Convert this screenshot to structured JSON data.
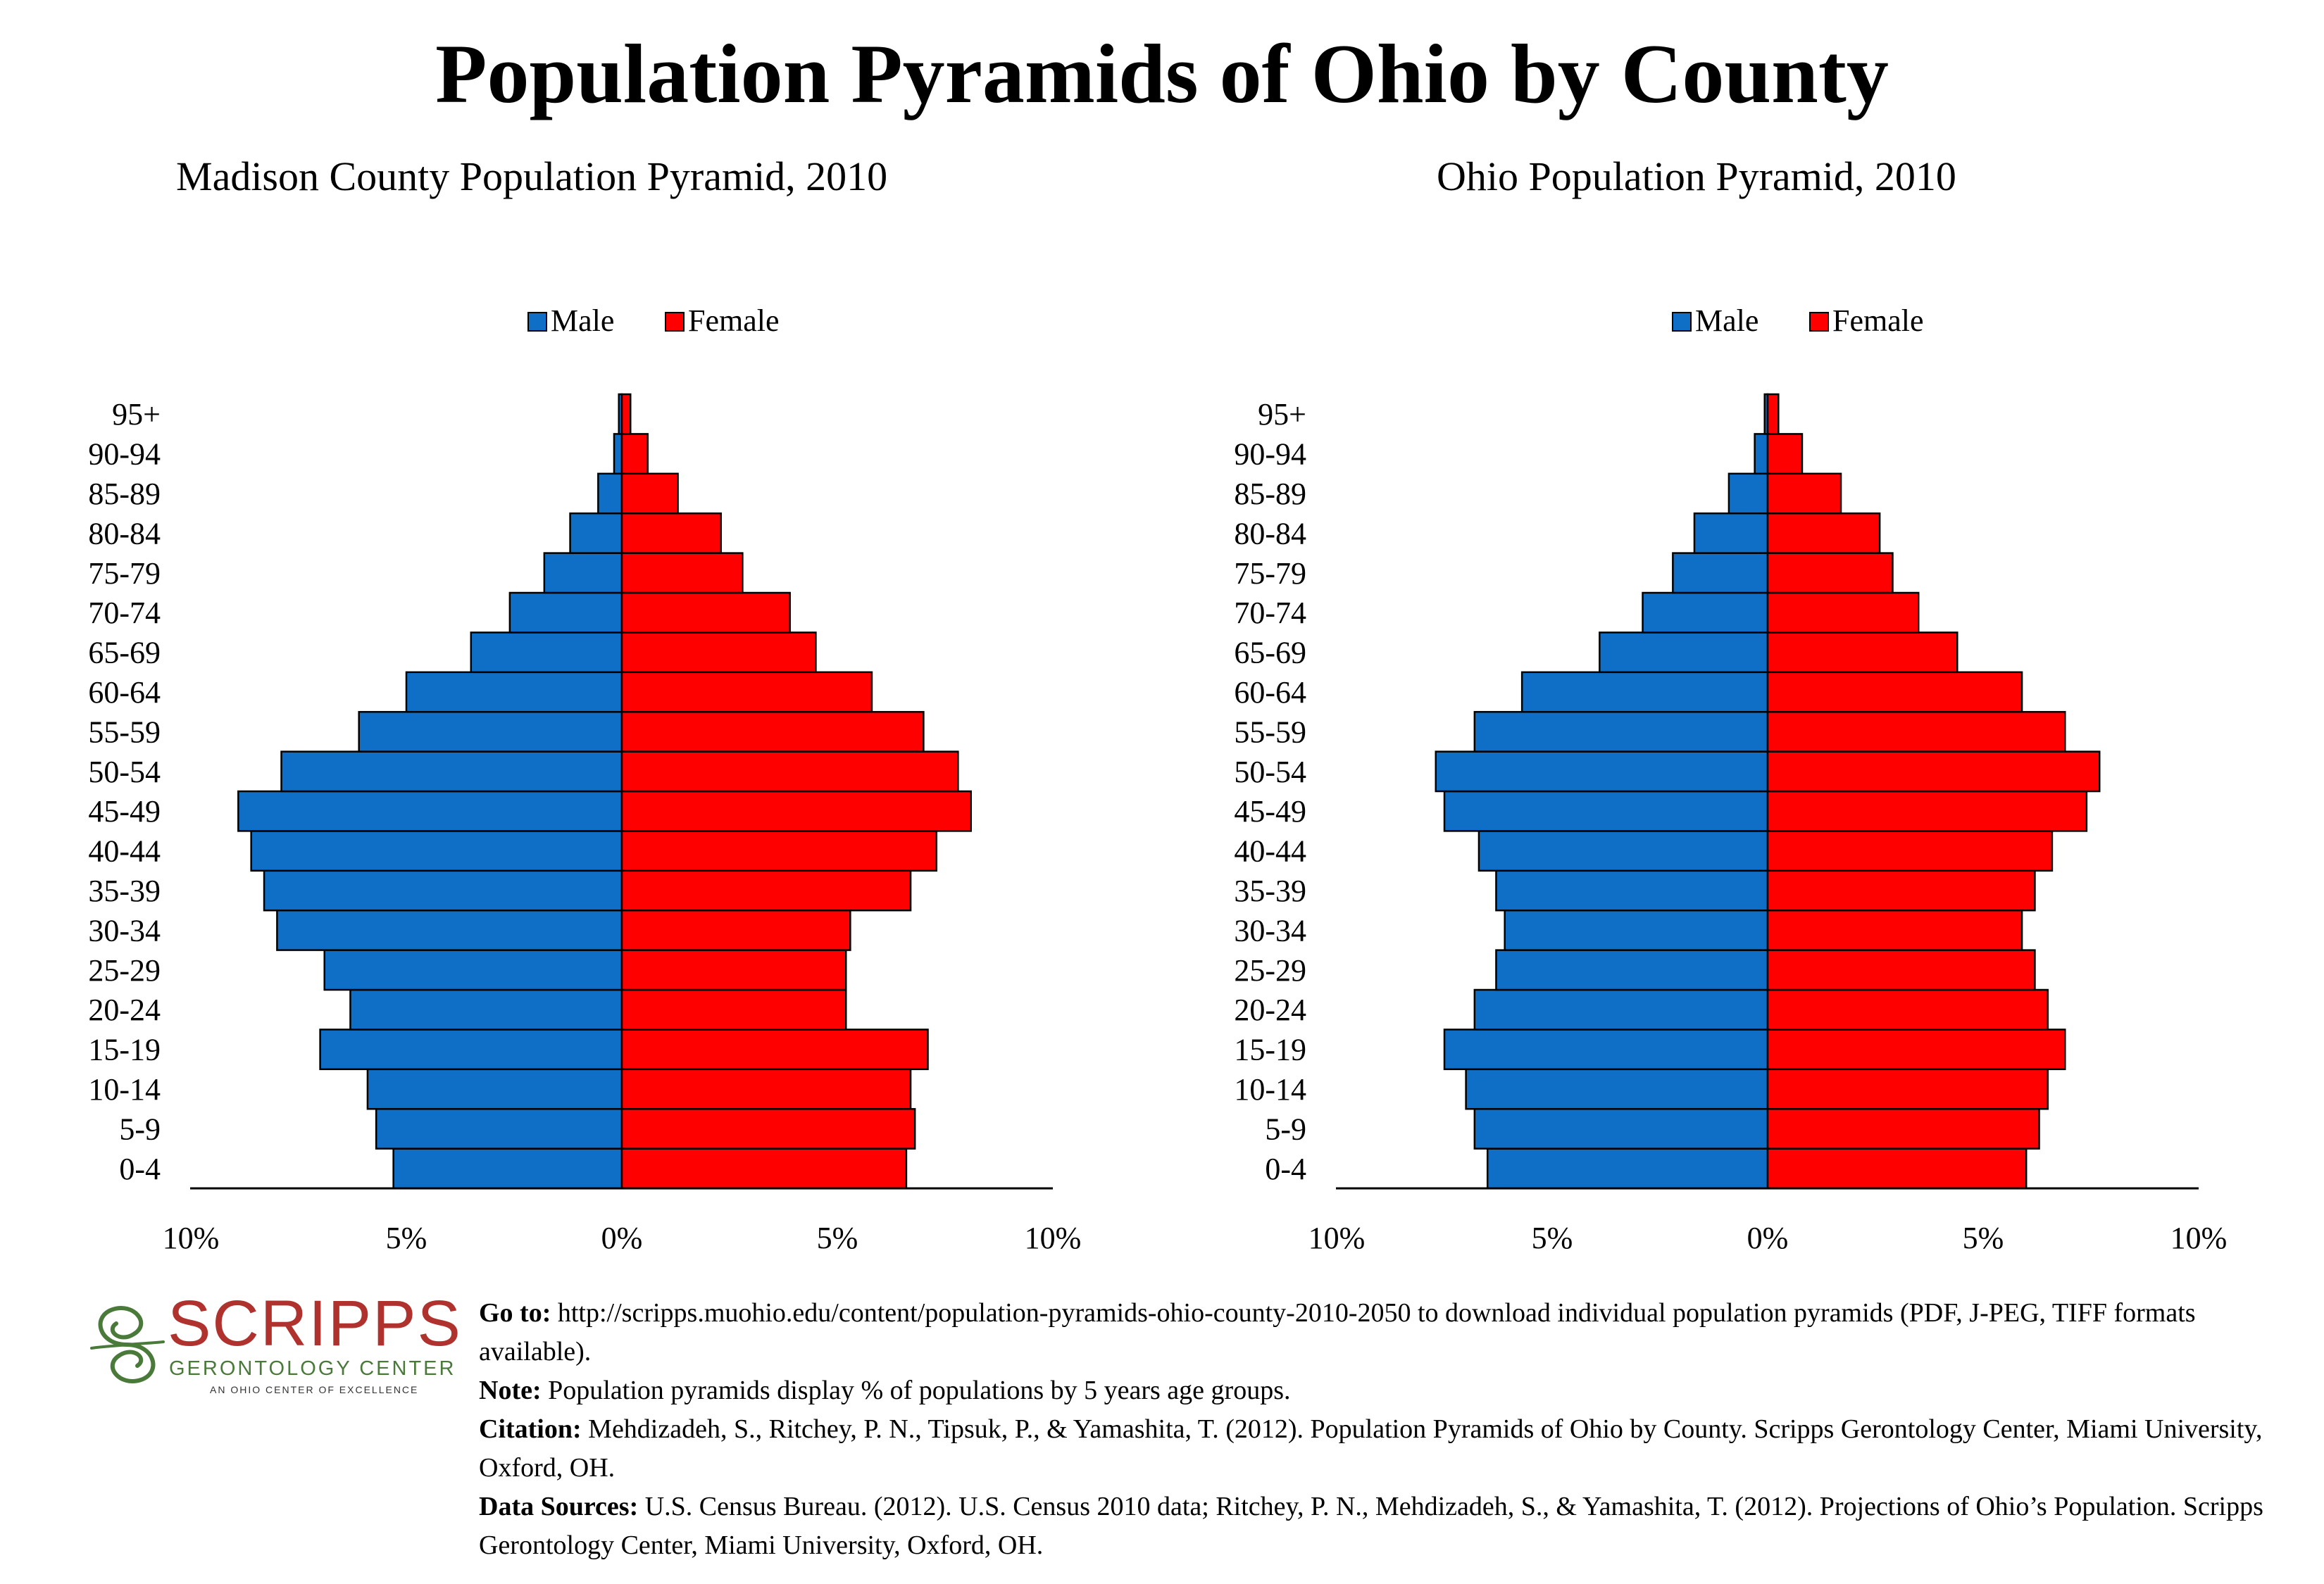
{
  "page_title": "Population Pyramids of Ohio by County",
  "colors": {
    "male": "#0f6fc6",
    "female": "#ff0000",
    "axis": "#000000",
    "logo_red": "#b0322e",
    "logo_green": "#4a7a3a"
  },
  "chart_data": [
    {
      "type": "bar",
      "orientation": "horizontal-pyramid",
      "title": "Madison County Population Pyramid, 2010",
      "legend": {
        "position": "top",
        "entries": [
          "Male",
          "Female"
        ]
      },
      "categories": [
        "0-4",
        "5-9",
        "10-14",
        "15-19",
        "20-24",
        "25-29",
        "30-34",
        "35-39",
        "40-44",
        "45-49",
        "50-54",
        "55-59",
        "60-64",
        "65-69",
        "70-74",
        "75-79",
        "80-84",
        "85-89",
        "90-94",
        "95+"
      ],
      "series": [
        {
          "name": "Male",
          "values": [
            5.3,
            5.7,
            5.9,
            7.0,
            6.3,
            6.9,
            8.0,
            8.3,
            8.6,
            8.9,
            7.9,
            6.1,
            5.0,
            3.5,
            2.6,
            1.8,
            1.2,
            0.55,
            0.18,
            0.07
          ]
        },
        {
          "name": "Female",
          "values": [
            6.6,
            6.8,
            6.7,
            7.1,
            5.2,
            5.2,
            5.3,
            6.7,
            7.3,
            8.1,
            7.8,
            7.0,
            5.8,
            4.5,
            3.9,
            2.8,
            2.3,
            1.3,
            0.6,
            0.2
          ]
        }
      ],
      "xlim": [
        -10,
        10
      ],
      "xticks": [
        "10%",
        "5%",
        "0%",
        "5%",
        "10%"
      ]
    },
    {
      "type": "bar",
      "orientation": "horizontal-pyramid",
      "title": "Ohio Population Pyramid, 2010",
      "legend": {
        "position": "top",
        "entries": [
          "Male",
          "Female"
        ]
      },
      "categories": [
        "0-4",
        "5-9",
        "10-14",
        "15-19",
        "20-24",
        "25-29",
        "30-34",
        "35-39",
        "40-44",
        "45-49",
        "50-54",
        "55-59",
        "60-64",
        "65-69",
        "70-74",
        "75-79",
        "80-84",
        "85-89",
        "90-94",
        "95+"
      ],
      "series": [
        {
          "name": "Male",
          "values": [
            6.5,
            6.8,
            7.0,
            7.5,
            6.8,
            6.3,
            6.1,
            6.3,
            6.7,
            7.5,
            7.7,
            6.8,
            5.7,
            3.9,
            2.9,
            2.2,
            1.7,
            0.9,
            0.3,
            0.07
          ]
        },
        {
          "name": "Female",
          "values": [
            6.0,
            6.3,
            6.5,
            6.9,
            6.5,
            6.2,
            5.9,
            6.2,
            6.6,
            7.4,
            7.7,
            6.9,
            5.9,
            4.4,
            3.5,
            2.9,
            2.6,
            1.7,
            0.8,
            0.25
          ]
        }
      ],
      "xlim": [
        -10,
        10
      ],
      "xticks": [
        "10%",
        "5%",
        "0%",
        "5%",
        "10%"
      ]
    }
  ],
  "logo": {
    "wordmark": "SCRIPPS",
    "subtitle": "GERONTOLOGY CENTER",
    "tagline": "AN OHIO CENTER OF EXCELLENCE"
  },
  "footer": {
    "goto_label": "Go to:",
    "goto_text": "http://scripps.muohio.edu/content/population-pyramids-ohio-county-2010-2050 to download individual population pyramids (PDF, J-PEG, TIFF formats available).",
    "note_label": "Note:",
    "note_text": "Population pyramids display % of populations by 5 years age groups.",
    "citation_label": "Citation:",
    "citation_text": "Mehdizadeh, S., Ritchey, P. N., Tipsuk, P., & Yamashita, T. (2012). Population Pyramids of Ohio by County. Scripps Gerontology Center, Miami University, Oxford, OH.",
    "sources_label": "Data Sources:",
    "sources_text": "U.S. Census Bureau. (2012). U.S. Census 2010 data; Ritchey, P. N., Mehdizadeh, S., & Yamashita, T. (2012). Projections of Ohio’s Population. Scripps Gerontology Center, Miami University, Oxford, OH."
  }
}
